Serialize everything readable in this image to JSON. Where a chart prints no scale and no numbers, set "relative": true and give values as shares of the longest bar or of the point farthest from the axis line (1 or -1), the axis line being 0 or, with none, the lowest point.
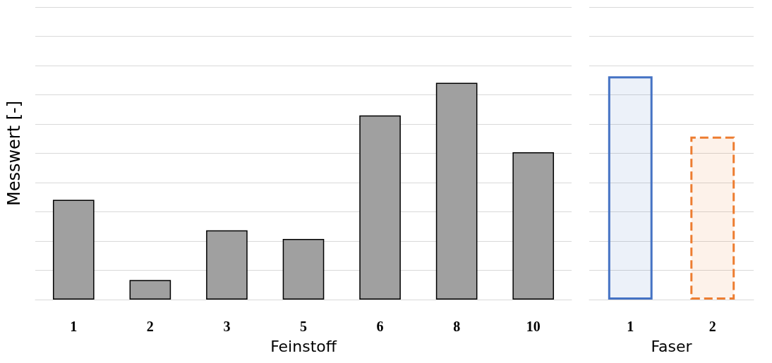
{
  "chart_data": [
    {
      "type": "bar",
      "relative": true,
      "ylabel": "Messwert [-]",
      "xlabel": "Feinstoff",
      "categories": [
        "1",
        "2",
        "3",
        "5",
        "6",
        "8",
        "10"
      ],
      "grid": "y",
      "series": [
        {
          "color": "#a0a0a0",
          "values": [
            0.46,
            0.09,
            0.32,
            0.28,
            0.85,
            1,
            0.68
          ],
          "line_style": "solid"
        }
      ]
    },
    {
      "type": "bar",
      "relative": true,
      "xlabel": "Faser",
      "categories": [
        "1",
        "2"
      ],
      "grid": "y",
      "series": [
        {
          "color": "#4472c4",
          "values": [
            1,
            null
          ],
          "line_style": "solid"
        },
        {
          "color": "#ed7d31",
          "values": [
            null,
            0.73
          ],
          "line_style": "dashed"
        }
      ]
    }
  ]
}
